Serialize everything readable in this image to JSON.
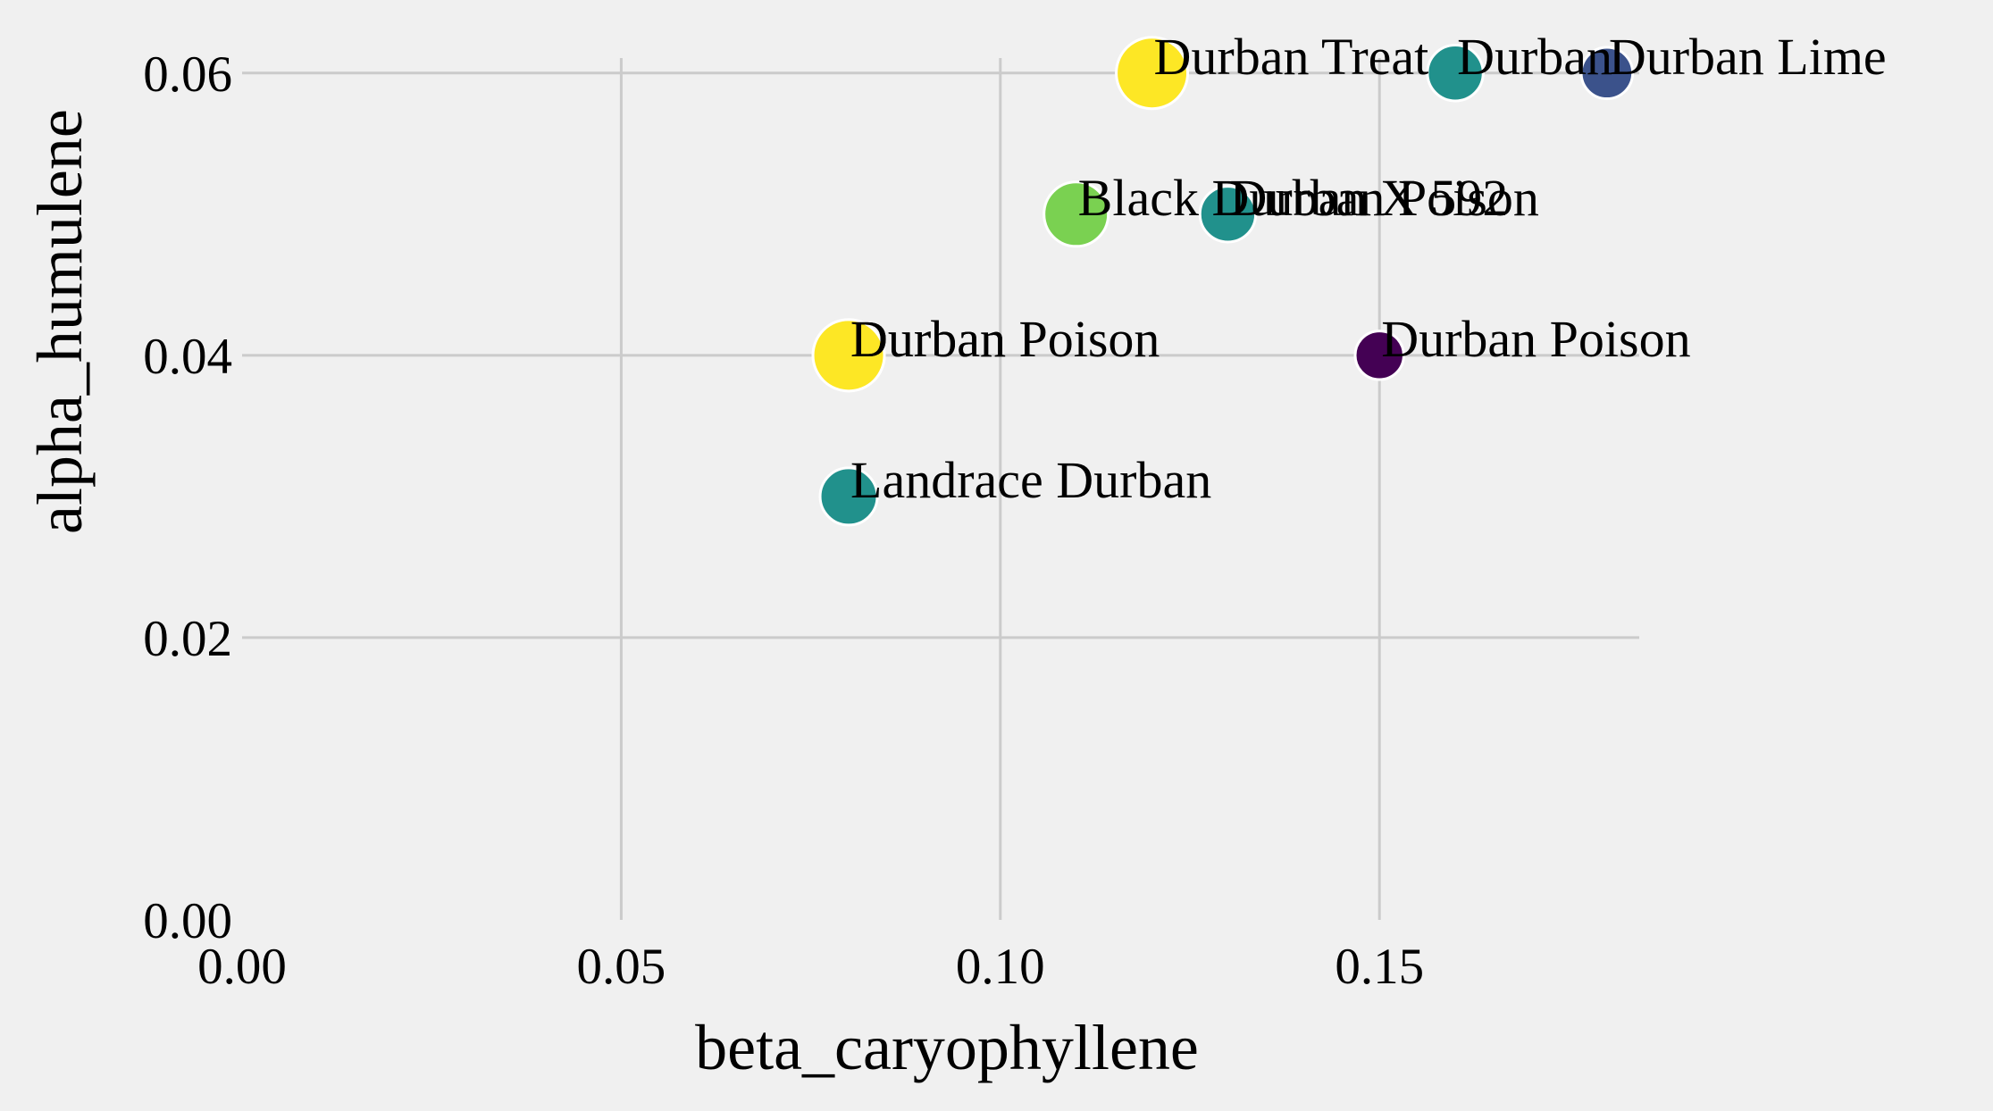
{
  "chart_data": {
    "type": "scatter",
    "xlabel": "beta_caryophyllene",
    "ylabel": "alpha_humulene",
    "xlim": [
      0.0,
      0.17
    ],
    "ylim": [
      0.0,
      0.06
    ],
    "xticks": [
      0.0,
      0.05,
      0.1,
      0.15
    ],
    "xtick_labels": [
      "0.00",
      "0.05",
      "0.10",
      "0.15"
    ],
    "yticks": [
      0.0,
      0.02,
      0.04,
      0.06
    ],
    "ytick_labels": [
      "0.00",
      "0.02",
      "0.04",
      "0.06"
    ],
    "grid": true,
    "points": [
      {
        "label": "Durban Treat",
        "x": 0.12,
        "y": 0.06,
        "color": "#fde725",
        "size": 1.0
      },
      {
        "label": "Durban",
        "x": 0.16,
        "y": 0.06,
        "color": "#21918c",
        "size": 0.45
      },
      {
        "label": "Durban Lime",
        "x": 0.18,
        "y": 0.06,
        "color": "#3b528b",
        "size": 0.3
      },
      {
        "label": "Black Durban X 592",
        "x": 0.11,
        "y": 0.05,
        "color": "#7ad151",
        "size": 0.75
      },
      {
        "label": "Durban Poison",
        "x": 0.13,
        "y": 0.05,
        "color": "#21918c",
        "size": 0.45
      },
      {
        "label": "Durban",
        "x": 0.08,
        "y": 0.04,
        "color": "#fde725",
        "size": 1.0
      },
      {
        "label": "Durban Poison",
        "x": 0.08,
        "y": 0.04,
        "color": "#fde725",
        "size": 1.0
      },
      {
        "label": "Durban Poison",
        "x": 0.15,
        "y": 0.04,
        "color": "#440154",
        "size": 0.2
      },
      {
        "label": "Landrace Durban",
        "x": 0.08,
        "y": 0.03,
        "color": "#21918c",
        "size": 0.5
      }
    ]
  }
}
